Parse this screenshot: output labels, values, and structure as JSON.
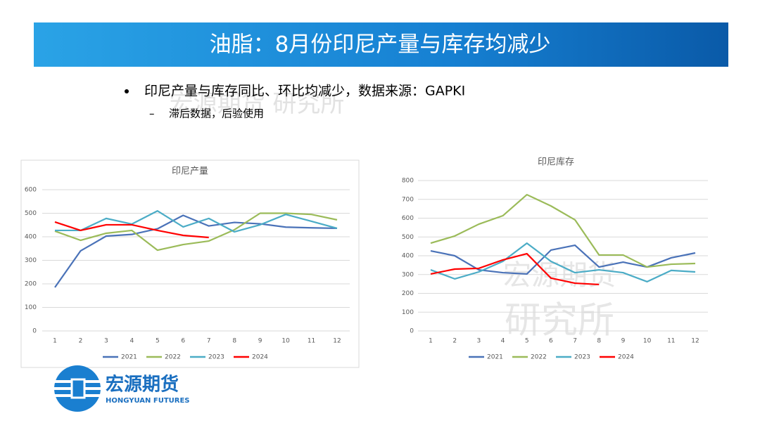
{
  "title": "油脂：8月份印尼产量与库存均减少",
  "bullet": "印尼产量与库存同比、环比均减少，数据来源：GAPKI",
  "sub_bullet": "滞后数据，后验使用",
  "watermarks": [
    "宏源期货 研究所",
    "宏源期货",
    "研究所"
  ],
  "logo": {
    "name": "宏源期货",
    "en": "HONGYUAN FUTURES"
  },
  "chart_data": [
    {
      "type": "line",
      "title": "印尼产量",
      "categories": [
        1,
        2,
        3,
        4,
        5,
        6,
        7,
        8,
        9,
        10,
        11,
        12
      ],
      "ylim": [
        0,
        600
      ],
      "yticks": [
        0,
        100,
        200,
        300,
        400,
        500,
        600
      ],
      "grid": true,
      "legend": "bottom",
      "series": [
        {
          "name": "2021",
          "color": "#4a72b8",
          "values": [
            185,
            340,
            403,
            410,
            434,
            491,
            446,
            461,
            455,
            441,
            438,
            436
          ]
        },
        {
          "name": "2022",
          "color": "#9bbb59",
          "values": [
            424,
            385,
            415,
            427,
            343,
            367,
            382,
            430,
            500,
            500,
            495,
            472
          ]
        },
        {
          "name": "2023",
          "color": "#4bacc6",
          "values": [
            427,
            427,
            478,
            454,
            510,
            442,
            478,
            421,
            451,
            495,
            466,
            436
          ]
        },
        {
          "name": "2024",
          "color": "#ff0000",
          "values": [
            463,
            427,
            451,
            451,
            427,
            406,
            397,
            null,
            null,
            null,
            null,
            null
          ]
        }
      ]
    },
    {
      "type": "line",
      "title": "印尼库存",
      "categories": [
        1,
        2,
        3,
        4,
        5,
        6,
        7,
        8,
        9,
        10,
        11,
        12
      ],
      "ylim": [
        0,
        800
      ],
      "yticks": [
        0,
        100,
        200,
        300,
        400,
        500,
        600,
        700,
        800
      ],
      "grid": true,
      "legend": "bottom",
      "series": [
        {
          "name": "2021",
          "color": "#4a72b8",
          "values": [
            426,
            400,
            325,
            310,
            303,
            430,
            456,
            340,
            366,
            340,
            389,
            415
          ]
        },
        {
          "name": "2022",
          "color": "#9bbb59",
          "values": [
            467,
            505,
            568,
            613,
            725,
            665,
            591,
            404,
            404,
            340,
            355,
            359
          ]
        },
        {
          "name": "2023",
          "color": "#4bacc6",
          "values": [
            325,
            277,
            314,
            370,
            467,
            370,
            310,
            325,
            310,
            262,
            322,
            314
          ]
        },
        {
          "name": "2024",
          "color": "#ff0000",
          "values": [
            303,
            329,
            333,
            378,
            411,
            281,
            254,
            247,
            null,
            null,
            null,
            null
          ]
        }
      ]
    }
  ]
}
